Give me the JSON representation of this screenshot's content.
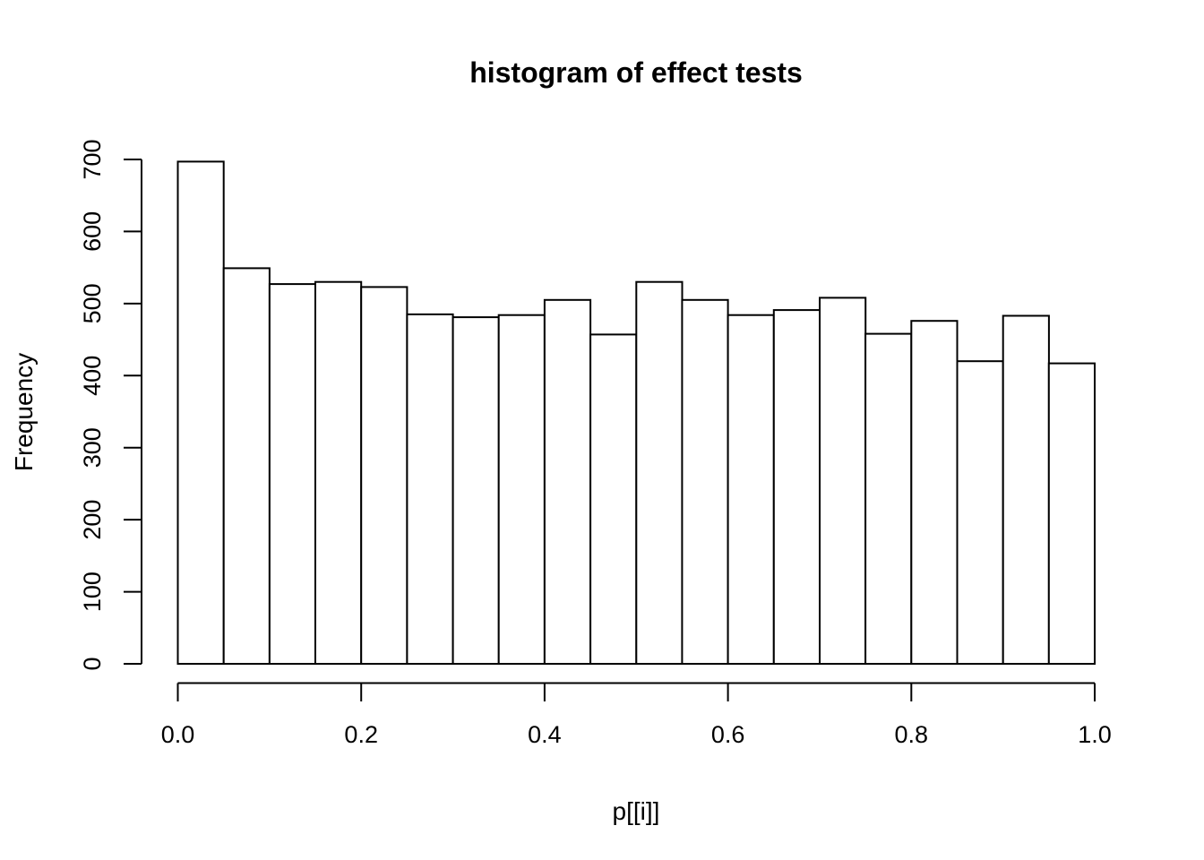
{
  "page": {
    "background": "#ffffff"
  },
  "chart_data": {
    "type": "bar",
    "subtype": "histogram",
    "title": "histogram of effect tests",
    "xlabel": "p[[i]]",
    "ylabel": "Frequency",
    "xlim": [
      0.0,
      1.0
    ],
    "ylim": [
      0,
      700
    ],
    "bin_start": 0.0,
    "bin_width": 0.05,
    "values": [
      697,
      549,
      527,
      530,
      523,
      485,
      481,
      484,
      505,
      457,
      530,
      505,
      484,
      491,
      508,
      458,
      476,
      420,
      483,
      417
    ],
    "x_ticks": [
      0.0,
      0.2,
      0.4,
      0.6,
      0.8,
      1.0
    ],
    "x_tick_labels": [
      "0.0",
      "0.2",
      "0.4",
      "0.6",
      "0.8",
      "1.0"
    ],
    "y_ticks": [
      0,
      100,
      200,
      300,
      400,
      500,
      600,
      700
    ],
    "y_tick_labels": [
      "0",
      "100",
      "200",
      "300",
      "400",
      "500",
      "600",
      "700"
    ],
    "grid": false,
    "legend_position": "none",
    "bar_fill": "#ffffff",
    "bar_stroke": "#000000",
    "axis_color": "#000000",
    "text_color": "#000000"
  }
}
